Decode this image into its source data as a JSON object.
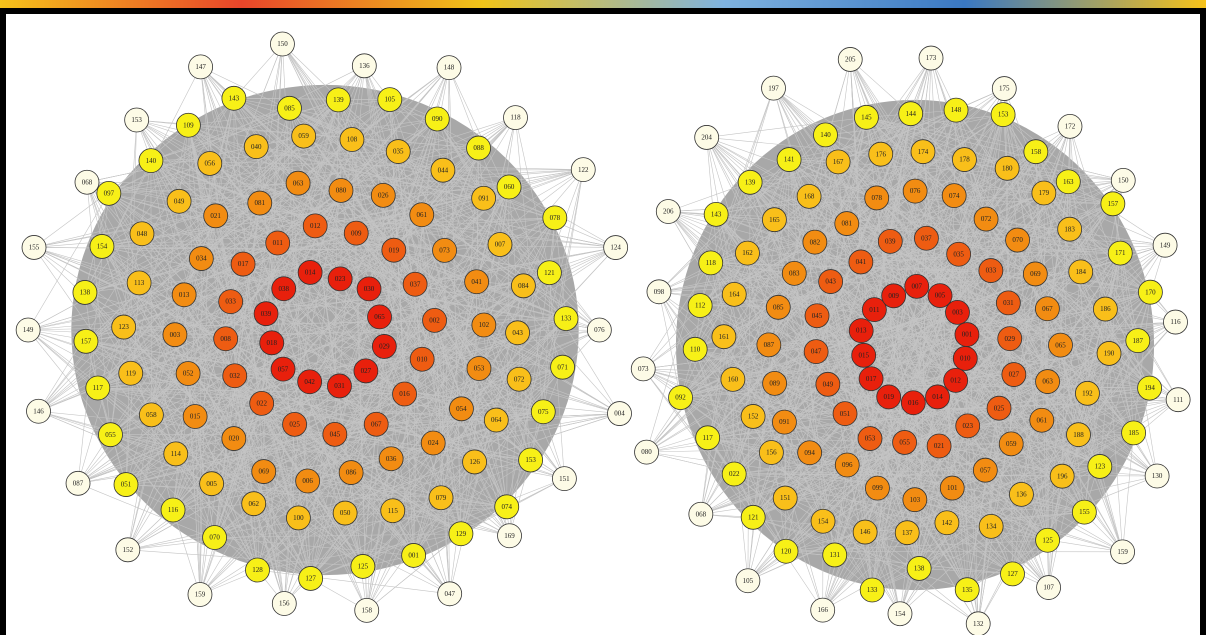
{
  "graphs": [
    {
      "levels": [
        {
          "color": "#fdfbe6",
          "nodes": [
            "076",
            "004",
            "151",
            "169",
            "047",
            "158",
            "156",
            "159",
            "152",
            "087",
            "146",
            "149",
            "155",
            "068",
            "153",
            "147",
            "150",
            "136",
            "148",
            "118",
            "122",
            "124"
          ]
        },
        {
          "color": "#f7f017",
          "nodes": [
            "075",
            "153",
            "074",
            "129",
            "001",
            "125",
            "127",
            "128",
            "070",
            "116",
            "051",
            "055",
            "117",
            "157",
            "138",
            "154",
            "097",
            "140",
            "109",
            "143",
            "085",
            "139",
            "105",
            "090",
            "088",
            "060",
            "078",
            "121",
            "133",
            "071"
          ]
        },
        {
          "color": "#f9bf1a",
          "nodes": [
            "126",
            "079",
            "115",
            "050",
            "100",
            "062",
            "005",
            "114",
            "058",
            "119",
            "123",
            "113",
            "048",
            "049",
            "056",
            "040",
            "059",
            "108",
            "035",
            "044",
            "091",
            "007",
            "084",
            "043",
            "072",
            "064"
          ]
        },
        {
          "color": "#f28c12",
          "nodes": [
            "036",
            "086",
            "006",
            "069",
            "020",
            "015",
            "052",
            "003",
            "013",
            "034",
            "021",
            "081",
            "063",
            "080",
            "026",
            "061",
            "073",
            "041",
            "102",
            "053",
            "054",
            "024"
          ]
        },
        {
          "color": "#ee5c12",
          "nodes": [
            "045",
            "025",
            "022",
            "032",
            "008",
            "033",
            "017",
            "011",
            "012",
            "009",
            "019",
            "037",
            "002",
            "010",
            "016",
            "067"
          ]
        },
        {
          "color": "#e8200c",
          "nodes": [
            "042",
            "057",
            "018",
            "039",
            "038",
            "014",
            "023",
            "030",
            "065",
            "029",
            "027",
            "031"
          ]
        }
      ]
    },
    {
      "levels": [
        {
          "color": "#fdfbe6",
          "nodes": [
            "111",
            "130",
            "159",
            "107",
            "132",
            "154",
            "166",
            "105",
            "068",
            "080",
            "073",
            "098",
            "206",
            "204",
            "197",
            "205",
            "173",
            "175",
            "172",
            "150",
            "149",
            "116"
          ]
        },
        {
          "color": "#f7f017",
          "nodes": [
            "123",
            "155",
            "125",
            "127",
            "135",
            "138",
            "133",
            "131",
            "120",
            "121",
            "022",
            "117",
            "092",
            "110",
            "112",
            "118",
            "143",
            "139",
            "141",
            "140",
            "145",
            "144",
            "148",
            "153",
            "158",
            "163",
            "157",
            "171",
            "170",
            "187",
            "194",
            "185"
          ]
        },
        {
          "color": "#f9bf1a",
          "nodes": [
            "136",
            "134",
            "142",
            "137",
            "146",
            "154",
            "151",
            "156",
            "152",
            "160",
            "161",
            "164",
            "162",
            "165",
            "168",
            "167",
            "176",
            "174",
            "178",
            "180",
            "179",
            "183",
            "184",
            "186",
            "190",
            "192",
            "188",
            "196"
          ]
        },
        {
          "color": "#f28c12",
          "nodes": [
            "101",
            "103",
            "099",
            "096",
            "094",
            "091",
            "089",
            "087",
            "085",
            "083",
            "082",
            "081",
            "078",
            "076",
            "074",
            "072",
            "070",
            "069",
            "067",
            "065",
            "063",
            "061",
            "059",
            "057"
          ]
        },
        {
          "color": "#ee5c12",
          "nodes": [
            "055",
            "053",
            "051",
            "049",
            "047",
            "045",
            "043",
            "041",
            "039",
            "037",
            "035",
            "033",
            "031",
            "029",
            "027",
            "025",
            "023",
            "021"
          ]
        },
        {
          "color": "#e8200c",
          "nodes": [
            "019",
            "017",
            "015",
            "013",
            "011",
            "009",
            "007",
            "005",
            "003",
            "001",
            "010",
            "012",
            "014",
            "016"
          ]
        }
      ]
    }
  ]
}
